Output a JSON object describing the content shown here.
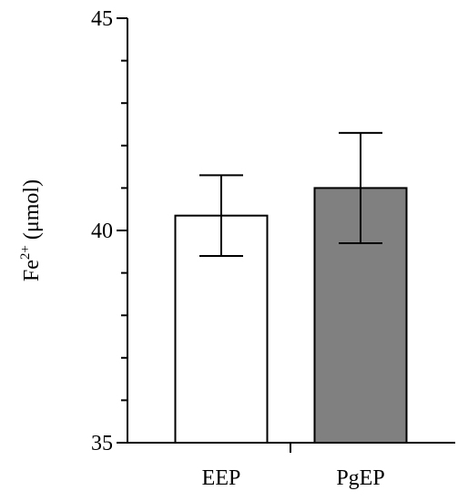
{
  "chart_data": {
    "type": "bar",
    "categories": [
      "EEP",
      "PgEP"
    ],
    "values": [
      40.35,
      41.0
    ],
    "errors": [
      0.95,
      1.3
    ],
    "bar_colors": [
      "#ffffff",
      "#808080"
    ],
    "ylabel": {
      "base": "Fe",
      "superscript": "2+",
      "unit": " (μmol)"
    },
    "ylim": [
      35,
      45
    ],
    "yticks_major": [
      "35",
      "40",
      "45"
    ],
    "yticks_major_values": [
      35,
      40,
      45
    ],
    "yticks_minor_values": [
      36,
      37,
      38,
      39,
      41,
      42,
      43,
      44
    ],
    "grid": false,
    "legend": "none"
  }
}
